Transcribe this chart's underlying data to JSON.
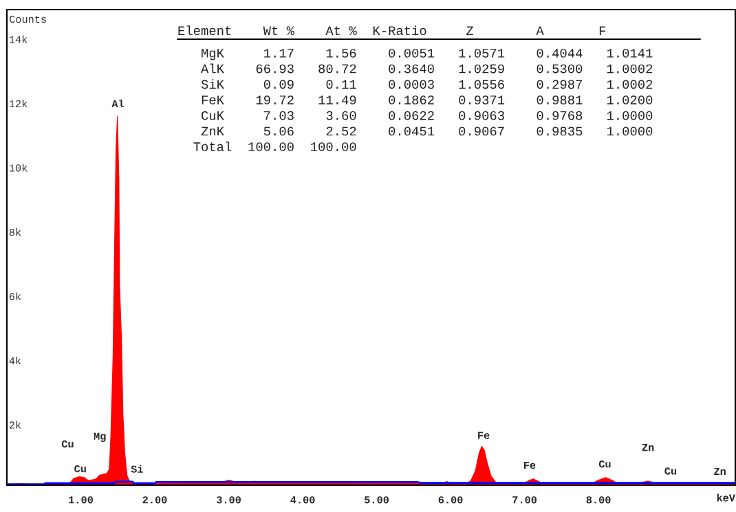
{
  "chart_data": {
    "type": "area",
    "ylabel": "Counts",
    "xlabel": "keV",
    "xlim": [
      0,
      9.85
    ],
    "xticks": [
      {
        "value": 1,
        "label": "1.00"
      },
      {
        "value": 2,
        "label": "2.00"
      },
      {
        "value": 3,
        "label": "3.00"
      },
      {
        "value": 4,
        "label": "4.00"
      },
      {
        "value": 5,
        "label": "5.00"
      },
      {
        "value": 6,
        "label": "6.00"
      },
      {
        "value": 7,
        "label": "7.00"
      },
      {
        "value": 8,
        "label": "8.00"
      }
    ],
    "ylim": [
      0,
      14800
    ],
    "yticks": [
      {
        "value": 2000,
        "label": "2k"
      },
      {
        "value": 4000,
        "label": "4k"
      },
      {
        "value": 6000,
        "label": "6k"
      },
      {
        "value": 8000,
        "label": "8k"
      },
      {
        "value": 10000,
        "label": "10k"
      },
      {
        "value": 12000,
        "label": "12k"
      },
      {
        "value": 14000,
        "label": "14k"
      }
    ],
    "series": [
      {
        "color": "#ff0000",
        "x": [
          0,
          0.1,
          0.12,
          0.4,
          0.45,
          0.6,
          0.85,
          0.9,
          0.98,
          1.05,
          1.1,
          1.2,
          1.25,
          1.35,
          1.38,
          1.4,
          1.43,
          1.45,
          1.47,
          1.49,
          1.5,
          1.52,
          1.53,
          1.555,
          1.575,
          1.6,
          1.63,
          1.66,
          1.7,
          1.8,
          2.0,
          2.3,
          2.5,
          2.9,
          3.0,
          3.1,
          3.3,
          3.35,
          3.4,
          3.8,
          4.0,
          5.0,
          5.4,
          5.45,
          5.5,
          5.9,
          5.95,
          6.0,
          6.2,
          6.27,
          6.33,
          6.38,
          6.42,
          6.46,
          6.5,
          6.55,
          6.62,
          6.8,
          6.98,
          7.07,
          7.12,
          7.2,
          7.26,
          7.5,
          7.9,
          8.0,
          8.1,
          8.2,
          8.26,
          8.5,
          8.58,
          8.67,
          8.82,
          9.0,
          9.5,
          9.85
        ],
        "values": [
          30,
          40,
          60,
          40,
          30,
          50,
          80,
          220,
          280,
          250,
          160,
          200,
          320,
          380,
          500,
          1500,
          3970,
          7290,
          10460,
          11490,
          11490,
          9560,
          6180,
          4550,
          2200,
          1000,
          300,
          150,
          80,
          60,
          60,
          80,
          90,
          100,
          170,
          110,
          100,
          140,
          100,
          100,
          90,
          80,
          80,
          130,
          80,
          80,
          130,
          80,
          50,
          150,
          450,
          1000,
          1230,
          1100,
          700,
          300,
          80,
          60,
          60,
          170,
          210,
          120,
          60,
          50,
          60,
          170,
          250,
          150,
          60,
          50,
          100,
          140,
          60,
          50,
          50,
          50
        ]
      },
      {
        "type": "line",
        "color": "#0000ff",
        "x": [
          0,
          0.5,
          0.52,
          1.45,
          1.47,
          1.7,
          1.72,
          2.0,
          2.02,
          5.55,
          5.6,
          9.85
        ],
        "values": [
          30,
          30,
          60,
          60,
          110,
          110,
          60,
          60,
          100,
          100,
          70,
          70
        ]
      }
    ],
    "annotations": [
      {
        "text": "Al",
        "x": 1.49,
        "y": 11490
      },
      {
        "text": "Cu",
        "x": 0.9,
        "y": 220
      },
      {
        "text": "Cu",
        "x": 0.98,
        "y": 280
      },
      {
        "text": "Mg",
        "x": 1.4,
        "y": 1500
      },
      {
        "text": "Si",
        "x": 1.8,
        "y": 60
      },
      {
        "text": "Fe",
        "x": 6.42,
        "y": 1230
      },
      {
        "text": "Fe",
        "x": 7.12,
        "y": 210
      },
      {
        "text": "Cu",
        "x": 8.1,
        "y": 250
      },
      {
        "text": "Zn",
        "x": 8.67,
        "y": 140
      },
      {
        "text": "Cu",
        "x": 8.82,
        "y": 60
      },
      {
        "text": "Zn",
        "x": 9.5,
        "y": 50
      },
      "Element    Wt %    At %  K-Ratio     Z        A       F",
      "   MgK     1.17    1.56    0.0051   1.0571    0.4044   1.0141",
      "   AlK    66.93   80.72    0.3640   1.0259    0.5300   1.0002",
      "   SiK     0.09    0.11    0.0003   1.0556    0.2987   1.0002",
      "   FeK    19.72   11.49    0.1862   0.9371    0.9881   1.0200",
      "   CuK     7.03    3.60    0.0622   0.9063    0.9768   1.0000",
      "   ZnK     5.06    2.52    0.0451   0.9067    0.9835   1.0000",
      "  Total  100.00  100.00"
    ],
    "legend": false,
    "grid": false
  }
}
